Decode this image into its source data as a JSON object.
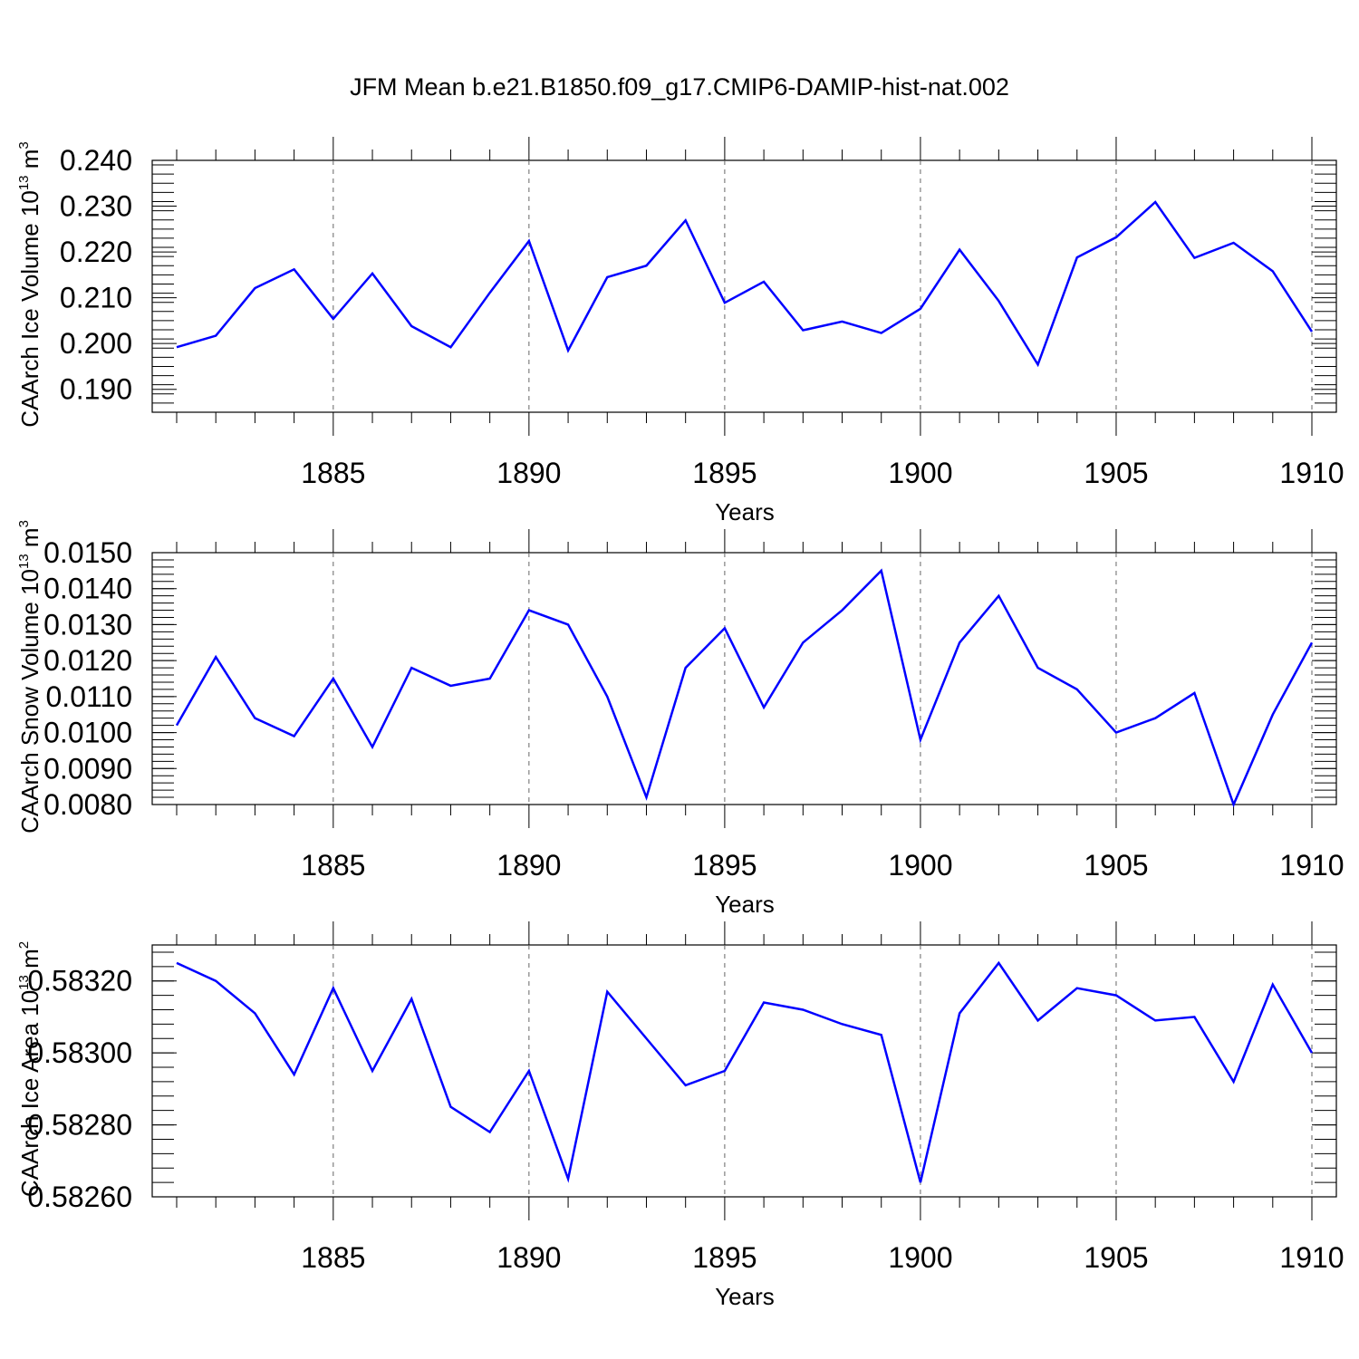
{
  "chart_data": {
    "type": "line",
    "title": "JFM Mean b.e21.B1850.f09_g17.CMIP6-DAMIP-hist-nat.002",
    "x": [
      1881,
      1882,
      1883,
      1884,
      1885,
      1886,
      1887,
      1888,
      1889,
      1890,
      1891,
      1892,
      1893,
      1894,
      1895,
      1896,
      1897,
      1898,
      1899,
      1900,
      1901,
      1902,
      1903,
      1904,
      1905,
      1906,
      1907,
      1908,
      1909,
      1910
    ],
    "xlim": [
      1881,
      1910
    ],
    "xticks": [
      1885,
      1890,
      1895,
      1900,
      1905,
      1910
    ],
    "panels": [
      {
        "name": "ice-volume",
        "xlabel": "Years",
        "ylabel_main": "CAArch Ice Volume 10",
        "ylabel_sup": "13",
        "ylabel_unit": " m",
        "ylabel_unit_sup": "3",
        "ylim": [
          0.185,
          0.24
        ],
        "yticks": [
          0.19,
          0.2,
          0.21,
          0.22,
          0.23,
          0.24
        ],
        "yticklabels": [
          "0.190",
          "0.200",
          "0.210",
          "0.220",
          "0.230",
          "0.240"
        ],
        "minor_step": 0.002,
        "color": "#0000ff",
        "values": [
          0.1992,
          0.2017,
          0.2121,
          0.2162,
          0.2054,
          0.2153,
          0.2038,
          0.1992,
          0.2111,
          0.2224,
          0.1985,
          0.2145,
          0.217,
          0.2269,
          0.2089,
          0.2135,
          0.2029,
          0.2048,
          0.2023,
          0.2076,
          0.2205,
          0.2093,
          0.1954,
          0.2188,
          0.2232,
          0.2309,
          0.2187,
          0.222,
          0.2158,
          0.2026
        ]
      },
      {
        "name": "snow-volume",
        "xlabel": "Years",
        "ylabel_main": "CAArch Snow Volume 10",
        "ylabel_sup": "13",
        "ylabel_unit": " m",
        "ylabel_unit_sup": "3",
        "ylim": [
          0.008,
          0.015
        ],
        "yticks": [
          0.008,
          0.009,
          0.01,
          0.011,
          0.012,
          0.013,
          0.014,
          0.015
        ],
        "yticklabels": [
          "0.0080",
          "0.0090",
          "0.0100",
          "0.0110",
          "0.0120",
          "0.0130",
          "0.0140",
          "0.0150"
        ],
        "minor_step": 0.0002,
        "color": "#0000ff",
        "values": [
          0.0102,
          0.0121,
          0.0104,
          0.0099,
          0.0115,
          0.0096,
          0.0118,
          0.0113,
          0.0115,
          0.0134,
          0.013,
          0.011,
          0.0082,
          0.0118,
          0.0129,
          0.0107,
          0.0125,
          0.0134,
          0.0145,
          0.0098,
          0.0125,
          0.0138,
          0.0118,
          0.0112,
          0.01,
          0.0104,
          0.0111,
          0.008,
          0.0105,
          0.0125
        ]
      },
      {
        "name": "ice-area",
        "xlabel": "Years",
        "ylabel_main": "CAArch Ice Area 10",
        "ylabel_sup": "13",
        "ylabel_unit": " m",
        "ylabel_unit_sup": "2",
        "ylim": [
          0.5826,
          0.5833
        ],
        "yticks": [
          0.5826,
          0.5828,
          0.583,
          0.5832
        ],
        "yticklabels": [
          "0.58260",
          "0.58280",
          "0.58300",
          "0.58320"
        ],
        "minor_step": 4e-05,
        "color": "#0000ff",
        "values": [
          0.58325,
          0.5832,
          0.58311,
          0.58294,
          0.58318,
          0.58295,
          0.58315,
          0.58285,
          0.58278,
          0.58295,
          0.58265,
          0.58317,
          0.58304,
          0.58291,
          0.58295,
          0.58314,
          0.58312,
          0.58308,
          0.58305,
          0.58264,
          0.58311,
          0.58325,
          0.58309,
          0.58318,
          0.58316,
          0.58309,
          0.5831,
          0.58292,
          0.58319,
          0.583
        ]
      }
    ]
  }
}
